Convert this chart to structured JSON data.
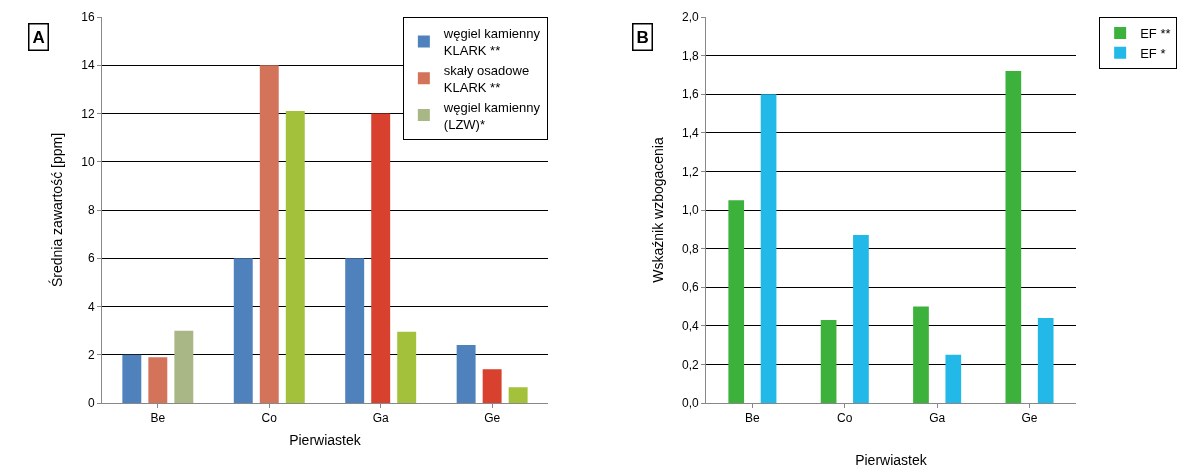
{
  "chart_data": [
    {
      "type": "bar",
      "categories": [
        "Be",
        "Co",
        "Ga",
        "Ge"
      ],
      "xlabel": "Pierwiastek",
      "ylabel": "Średnia zawartość [ppm]",
      "ylim": [
        0,
        16
      ],
      "yticks": [
        0,
        2,
        4,
        6,
        8,
        10,
        12,
        14,
        16
      ],
      "grid": "y",
      "legend": "top right",
      "annotations": [
        "A"
      ],
      "series": [
        {
          "name": "węgiel kamienny KLARK **",
          "color": "#4f81bd",
          "values": [
            2,
            6,
            6,
            2.4
          ]
        },
        {
          "name": "skały osadowe KLARK **",
          "color": "#d9412f",
          "colors": [
            "#d2735a",
            "#d2735a",
            "#d9412f",
            "#d9412f"
          ],
          "values": [
            1.9,
            14,
            12,
            1.4
          ]
        },
        {
          "name": "węgiel kamienny (LZW)*",
          "color": "#a3c13a",
          "colors": [
            "#a9b786",
            "#a3c13a",
            "#a3c13a",
            "#a3c13a"
          ],
          "values": [
            3,
            12.1,
            2.95,
            0.65
          ]
        }
      ]
    },
    {
      "type": "bar",
      "categories": [
        "Be",
        "Co",
        "Ga",
        "Ge"
      ],
      "xlabel": "Pierwiastek",
      "ylabel": "Wskaźnik wzbogacenia",
      "ylim": [
        0,
        2
      ],
      "yticks": [
        {
          "value": 0,
          "label": "0,0"
        },
        {
          "value": 0.2,
          "label": "0,2"
        },
        {
          "value": 0.4,
          "label": "0,4"
        },
        {
          "value": 0.6,
          "label": "0,6"
        },
        {
          "value": 0.8,
          "label": "0,8"
        },
        {
          "value": 1,
          "label": "1,0"
        },
        {
          "value": 1.2,
          "label": "1,2"
        },
        {
          "value": 1.4,
          "label": "1,4"
        },
        {
          "value": 1.6,
          "label": "1,6"
        },
        {
          "value": 1.8,
          "label": "1,8"
        },
        {
          "value": 2,
          "label": "2,0"
        }
      ],
      "grid": "y",
      "legend": "right",
      "annotations": [
        "B"
      ],
      "series": [
        {
          "name": "EF **",
          "color": "#3cb13c",
          "values": [
            1.05,
            0.43,
            0.5,
            1.72
          ]
        },
        {
          "name": "EF *",
          "color": "#22b8e8",
          "values": [
            1.6,
            0.87,
            0.25,
            0.44
          ]
        }
      ]
    }
  ]
}
